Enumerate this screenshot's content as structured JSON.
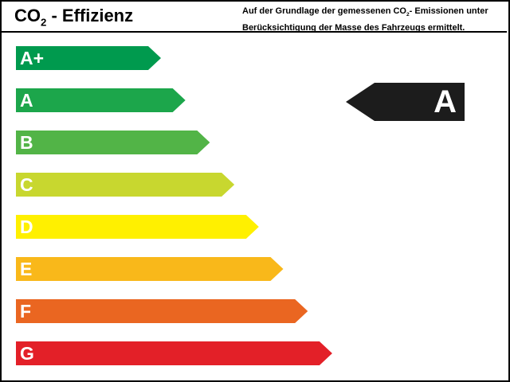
{
  "header": {
    "title_main": "CO",
    "title_sub": "2",
    "title_rest": " - Effizienz",
    "note_line1_a": "Auf der Grundlage der gemessenen CO",
    "note_line1_sub": "2",
    "note_line1_b": "- Emissionen unter",
    "note_line2": "Berücksichtigung der Masse des Fahrzeugs ermittelt."
  },
  "classes": [
    {
      "label": "A+",
      "color": "#009a4e"
    },
    {
      "label": "A",
      "color": "#1ca64b"
    },
    {
      "label": "B",
      "color": "#52b447"
    },
    {
      "label": "C",
      "color": "#c8d72f"
    },
    {
      "label": "D",
      "color": "#fff000"
    },
    {
      "label": "E",
      "color": "#f9b81a"
    },
    {
      "label": "F",
      "color": "#ea6621"
    },
    {
      "label": "G",
      "color": "#e32028"
    }
  ],
  "indicator": {
    "label": "A",
    "color": "#1c1c1c"
  }
}
